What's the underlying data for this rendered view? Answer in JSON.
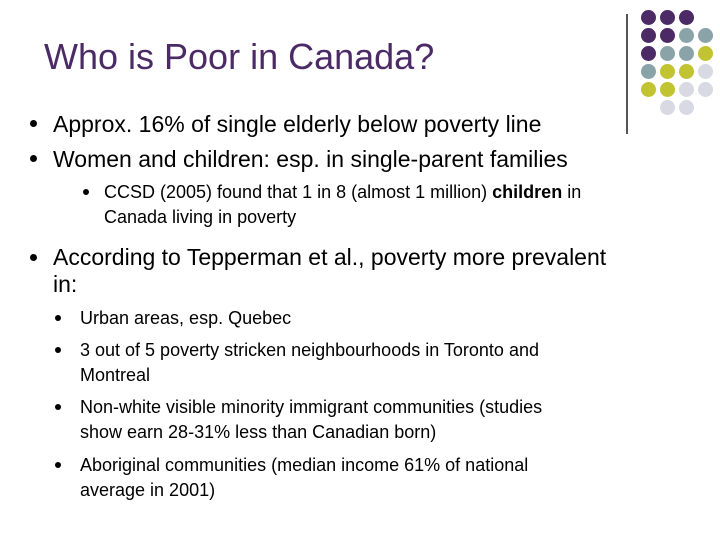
{
  "title": "Who is Poor in Canada?",
  "colors": {
    "title": "#4b2a66",
    "purple": "#4b2a66",
    "slate": "#8aa3a8",
    "olive": "#c2c331",
    "lilac": "#d9d9e3"
  },
  "bullets": {
    "b1": "Approx. 16% of single elderly below poverty line",
    "b2": "Women and children: esp. in single-parent families",
    "b2_sub1_part1": "CCSD (2005) found that 1 in 8 (almost 1 million) ",
    "b2_sub1_bold": "children",
    "b2_sub1_part2": " in",
    "b2_sub1_line2": "Canada living in poverty",
    "b3_line1": "According to Tepperman et al., poverty more prevalent",
    "b3_line2": "in:",
    "b3_sub1": "Urban areas, esp. Quebec",
    "b3_sub2_line1": "3 out of 5 poverty stricken neighbourhoods in Toronto and",
    "b3_sub2_line2": "Montreal",
    "b3_sub3_line1": "Non-white visible minority immigrant communities (studies",
    "b3_sub3_line2": "show earn 28-31% less than Canadian born)",
    "b3_sub4_line1": "Aboriginal communities (median income 61% of national",
    "b3_sub4_line2": "average in 2001)"
  }
}
